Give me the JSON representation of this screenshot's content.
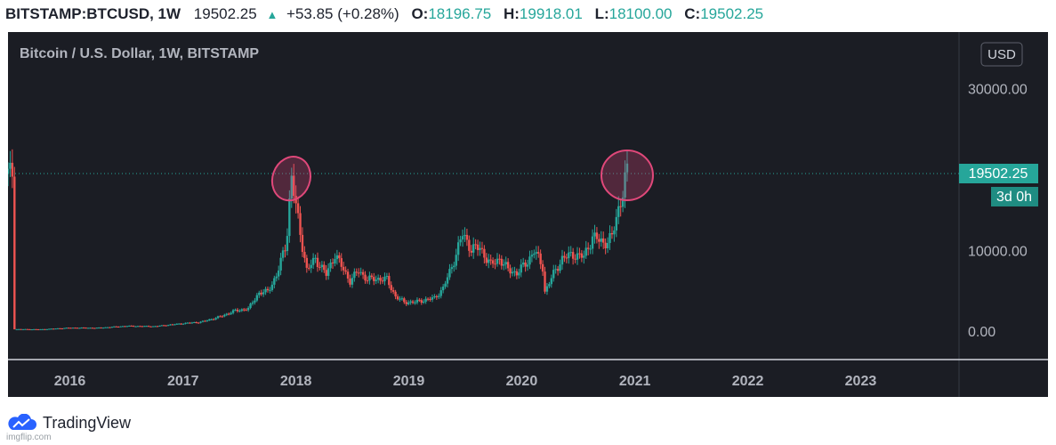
{
  "header": {
    "symbol": "BITSTAMP:BTCUSD, 1W",
    "last": "19502.25",
    "change": "+53.85 (+0.28%)",
    "open_key": "O:",
    "open": "18196.75",
    "high_key": "H:",
    "high": "19918.01",
    "low_key": "L:",
    "low": "18100.00",
    "close_key": "C:",
    "close": "19502.25"
  },
  "chart": {
    "pane_title": "Bitcoin / U.S. Dollar, 1W, BITSTAMP",
    "currency_button": "USD",
    "price_label": "19502.25",
    "countdown_label": "3d 0h",
    "colors": {
      "up": "#26a69a",
      "down": "#ef5350",
      "background": "#1b1d24",
      "highlight_circle": "#e0487a"
    }
  },
  "footer": {
    "brand": "TradingView",
    "brand_icon": "tradingview-cloud-icon",
    "watermark": "imgflip.com"
  },
  "chart_data": {
    "type": "line",
    "title": "Bitcoin / U.S. Dollar, 1W, BITSTAMP",
    "xlabel": "",
    "ylabel": "",
    "y_tick_labels": [
      "30000.00",
      "10000.00",
      "0.00"
    ],
    "x_tick_labels": [
      "2016",
      "2017",
      "2018",
      "2019",
      "2020",
      "2021",
      "2022",
      "2023"
    ],
    "ylim": [
      -3500,
      37000
    ],
    "xlim": [
      "2015-06-15",
      "2023-11-15"
    ],
    "grid": false,
    "legend": "none",
    "last_price": 19502.25,
    "last_price_line": "dotted",
    "series": [
      {
        "x": [
          "2015-07-01",
          "2015-10-01",
          "2016-01-01",
          "2016-04-01",
          "2016-07-01",
          "2016-10-01",
          "2017-01-01",
          "2017-03-01",
          "2017-05-01",
          "2017-06-15",
          "2017-08-01",
          "2017-09-01",
          "2017-10-01",
          "2017-11-01",
          "2017-12-01",
          "2017-12-17",
          "2018-01-07",
          "2018-02-05",
          "2018-03-05",
          "2018-04-09",
          "2018-05-07",
          "2018-06-25",
          "2018-07-23",
          "2018-08-20",
          "2018-09-17",
          "2018-10-22",
          "2018-11-19",
          "2018-12-17",
          "2019-01-21",
          "2019-02-25",
          "2019-03-25",
          "2019-04-22",
          "2019-05-20",
          "2019-06-24",
          "2019-07-22",
          "2019-08-19",
          "2019-09-23",
          "2019-10-21",
          "2019-11-18",
          "2019-12-16",
          "2020-01-20",
          "2020-02-10",
          "2020-03-09",
          "2020-03-16",
          "2020-04-13",
          "2020-05-11",
          "2020-06-15",
          "2020-07-20",
          "2020-08-17",
          "2020-09-21",
          "2020-10-19",
          "2020-11-02",
          "2020-11-16",
          "2020-11-30",
          "2020-12-07"
        ],
        "values": [
          260,
          240,
          430,
          420,
          650,
          610,
          970,
          1150,
          1800,
          2500,
          2800,
          4700,
          4900,
          7000,
          11000,
          19100,
          14000,
          7500,
          9000,
          7000,
          9500,
          6200,
          7500,
          6400,
          6500,
          6400,
          4300,
          3600,
          3600,
          3900,
          4100,
          5300,
          8000,
          12000,
          10200,
          10300,
          8200,
          9000,
          7600,
          7200,
          8600,
          10000,
          7900,
          4900,
          7100,
          9000,
          9500,
          9200,
          11700,
          10900,
          11600,
          14000,
          16200,
          18800,
          19502.25
        ]
      }
    ],
    "annotations": [
      {
        "shape": "ellipse",
        "near": "2017-12-17 high"
      },
      {
        "shape": "ellipse",
        "near": "2020-12-07 high"
      }
    ]
  }
}
